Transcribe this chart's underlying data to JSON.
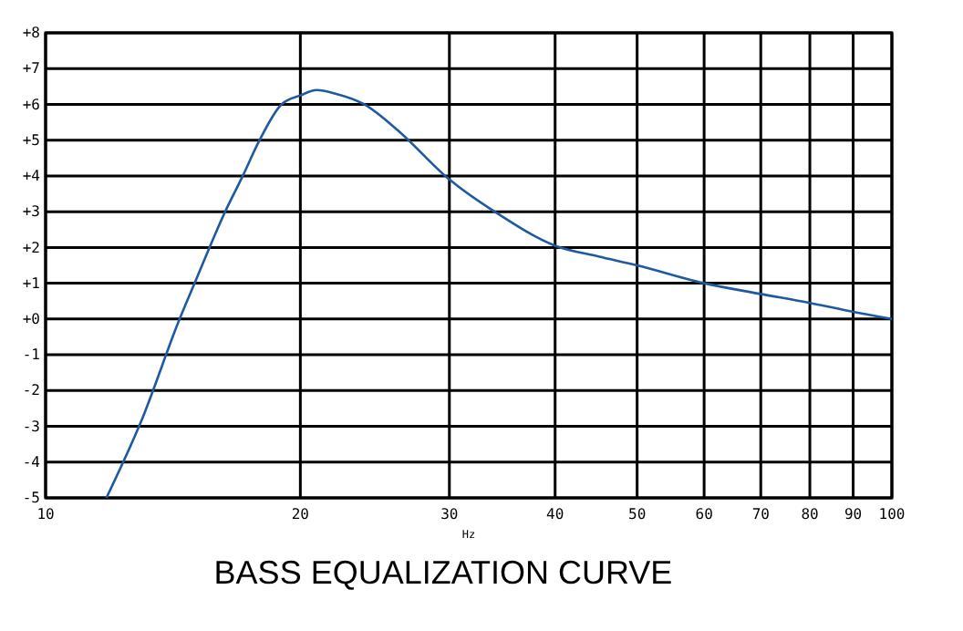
{
  "chart_data": {
    "type": "line",
    "title": "BASS EQUALIZATION CURVE",
    "xlabel": "Hz",
    "log": "x",
    "x": [
      11.8,
      13.0,
      14.4,
      15.0,
      16.3,
      17.1,
      17.9,
      19.0,
      20.0,
      20.9,
      22.0,
      23.8,
      26.0,
      30.0,
      34.2,
      40.0,
      45.0,
      50.0,
      60.0,
      70.0,
      80.0,
      90.0,
      100.0
    ],
    "series": [
      {
        "color": "#1f5aa0",
        "values": [
          -5,
          -2.8,
          0,
          1,
          3,
          4,
          5,
          6,
          6.25,
          6.4,
          6.3,
          6.0,
          5.3,
          3.9,
          2.95,
          2.05,
          1.75,
          1.5,
          1.0,
          0.7,
          0.45,
          0.2,
          0
        ]
      }
    ],
    "xlim": [
      10,
      100
    ],
    "xticks": [
      10,
      20,
      30,
      40,
      50,
      60,
      70,
      80,
      90,
      100
    ],
    "ylim": [
      -5,
      8
    ],
    "yticks": [
      {
        "value": 8,
        "label": "+8"
      },
      {
        "value": 7,
        "label": "+7"
      },
      {
        "value": 6,
        "label": "+6"
      },
      {
        "value": 5,
        "label": "+5"
      },
      {
        "value": 4,
        "label": "+4"
      },
      {
        "value": 3,
        "label": "+3"
      },
      {
        "value": 2,
        "label": "+2"
      },
      {
        "value": 1,
        "label": "+1"
      },
      {
        "value": 0,
        "label": "+0"
      },
      -1,
      -2,
      -3,
      -4,
      -5
    ],
    "grid": true,
    "line_style": "solid",
    "marker": "none"
  }
}
